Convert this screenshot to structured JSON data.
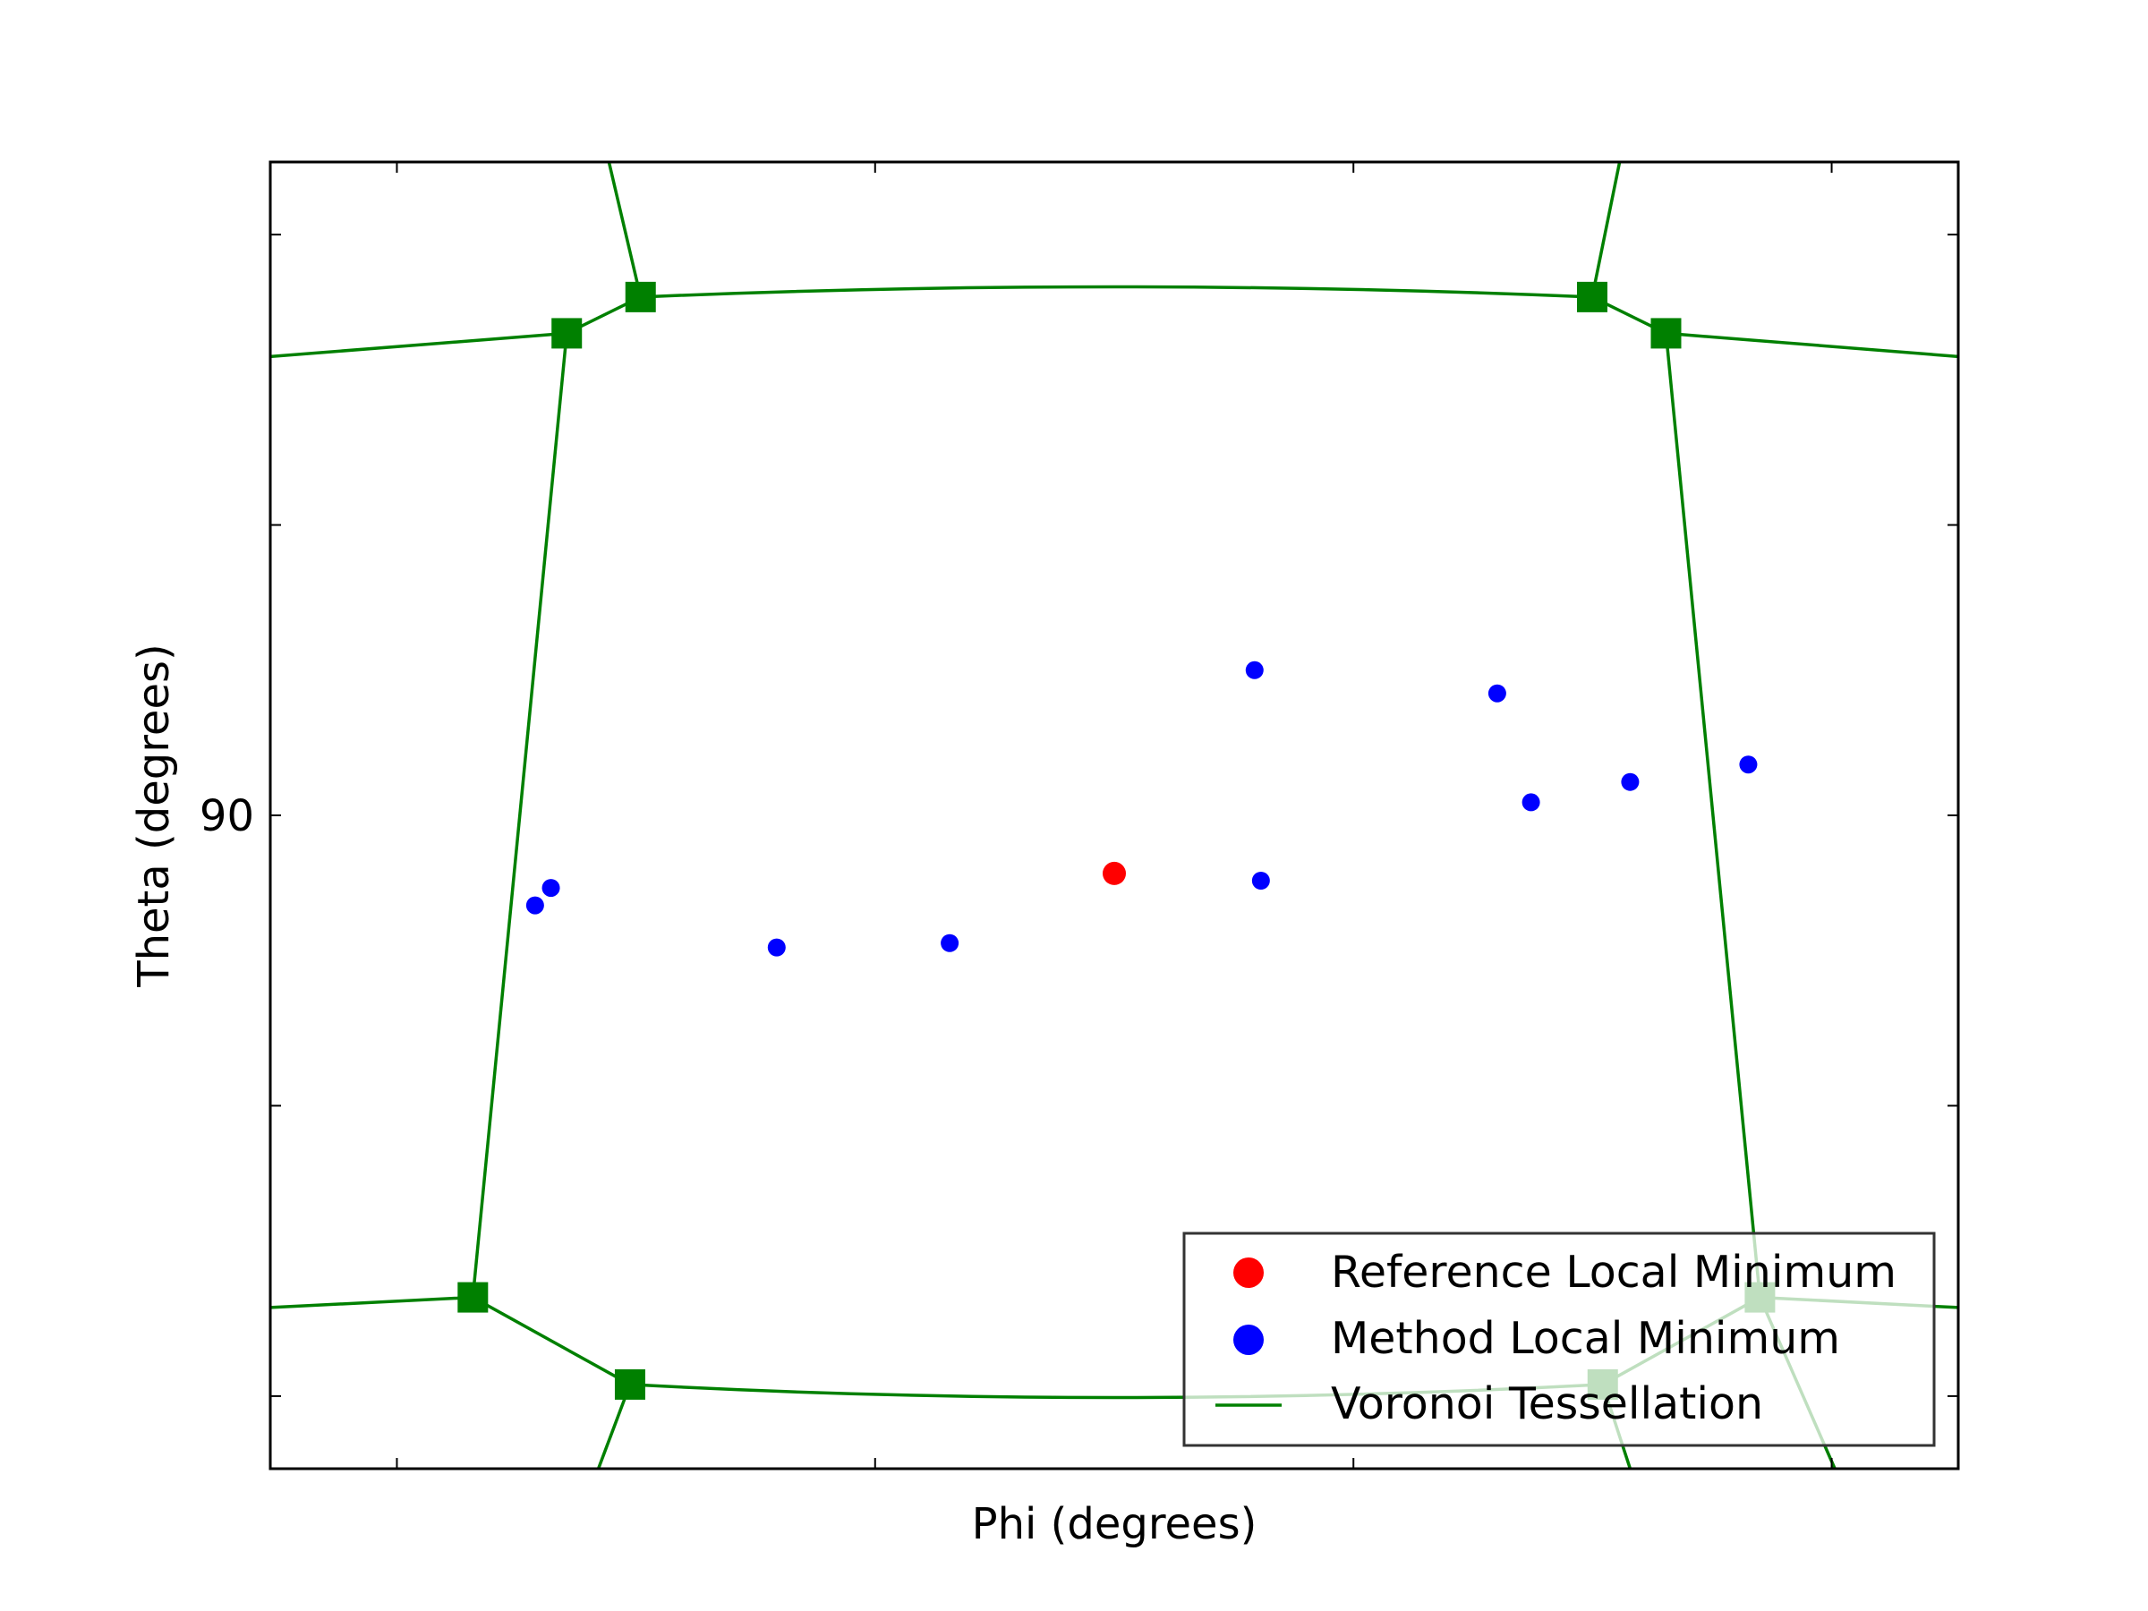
{
  "chart_data": {
    "type": "scatter",
    "title": "",
    "xlabel": "Phi (degrees)",
    "ylabel": "Theta (degrees)",
    "xlim": [
      -80,
      80
    ],
    "ylim": [
      45,
      135
    ],
    "x_ticks": [
      -68.0,
      -22.67,
      22.67,
      68.0
    ],
    "x_tick_labels": [
      "",
      "",
      "",
      ""
    ],
    "y_ticks": [
      50,
      70,
      90,
      110,
      130
    ],
    "y_tick_labels": [
      "",
      "",
      "90",
      "",
      ""
    ],
    "grid": false,
    "legend_position": "lower-right",
    "series": [
      {
        "name": "Reference Local Minimum",
        "color": "#ff0000",
        "marker": "circle",
        "points": [
          [
            0.0,
            86.0
          ]
        ]
      },
      {
        "name": "Method Local Minimum",
        "color": "#0000ff",
        "marker": "circle",
        "points": [
          [
            -54.9,
            83.8
          ],
          [
            -53.4,
            85.0
          ],
          [
            -32.0,
            80.9
          ],
          [
            -15.6,
            81.2
          ],
          [
            13.3,
            100.0
          ],
          [
            13.9,
            85.5
          ],
          [
            36.3,
            98.4
          ],
          [
            39.5,
            90.9
          ],
          [
            48.9,
            92.3
          ],
          [
            60.1,
            93.5
          ]
        ]
      },
      {
        "name": "Voronoi Tessellation",
        "color": "#008000",
        "marker": "line",
        "vertices": [
          [
            -51.9,
            123.2
          ],
          [
            -44.9,
            125.7
          ],
          [
            45.3,
            125.7
          ],
          [
            52.3,
            123.2
          ],
          [
            -60.8,
            56.8
          ],
          [
            -45.9,
            50.8
          ],
          [
            46.3,
            50.8
          ],
          [
            61.2,
            56.8
          ]
        ],
        "segments": [
          [
            [
              -80,
              121.6
            ],
            [
              -51.9,
              123.2
            ]
          ],
          [
            [
              -51.9,
              123.2
            ],
            [
              -44.9,
              125.7
            ]
          ],
          [
            [
              -44.9,
              125.7
            ],
            [
              -47.9,
              135.0
            ]
          ],
          [
            [
              -44.9,
              125.7
            ],
            [
              0.0,
              126.4
            ],
            [
              45.3,
              125.7
            ]
          ],
          [
            [
              45.3,
              125.7
            ],
            [
              47.9,
              135.0
            ]
          ],
          [
            [
              45.3,
              125.7
            ],
            [
              52.3,
              123.2
            ]
          ],
          [
            [
              52.3,
              123.2
            ],
            [
              80,
              121.6
            ]
          ],
          [
            [
              -51.9,
              123.2
            ],
            [
              -60.8,
              56.8
            ]
          ],
          [
            [
              52.3,
              123.2
            ],
            [
              61.2,
              56.8
            ]
          ],
          [
            [
              -80,
              56.1
            ],
            [
              -60.8,
              56.8
            ]
          ],
          [
            [
              -60.8,
              56.8
            ],
            [
              -45.9,
              50.8
            ]
          ],
          [
            [
              -45.9,
              50.8
            ],
            [
              -48.9,
              45.0
            ]
          ],
          [
            [
              -45.9,
              50.8
            ],
            [
              0.0,
              49.9
            ],
            [
              46.3,
              50.8
            ]
          ],
          [
            [
              46.3,
              50.8
            ],
            [
              48.9,
              45.0
            ]
          ],
          [
            [
              46.3,
              50.8
            ],
            [
              61.2,
              56.8
            ]
          ],
          [
            [
              61.2,
              56.8
            ],
            [
              80,
              56.1
            ]
          ],
          [
            [
              61.2,
              56.8
            ],
            [
              68.3,
              45.0
            ]
          ]
        ]
      }
    ],
    "legend": [
      "Reference Local Minimum",
      "Method Local Minimum",
      "Voronoi Tessellation"
    ]
  }
}
